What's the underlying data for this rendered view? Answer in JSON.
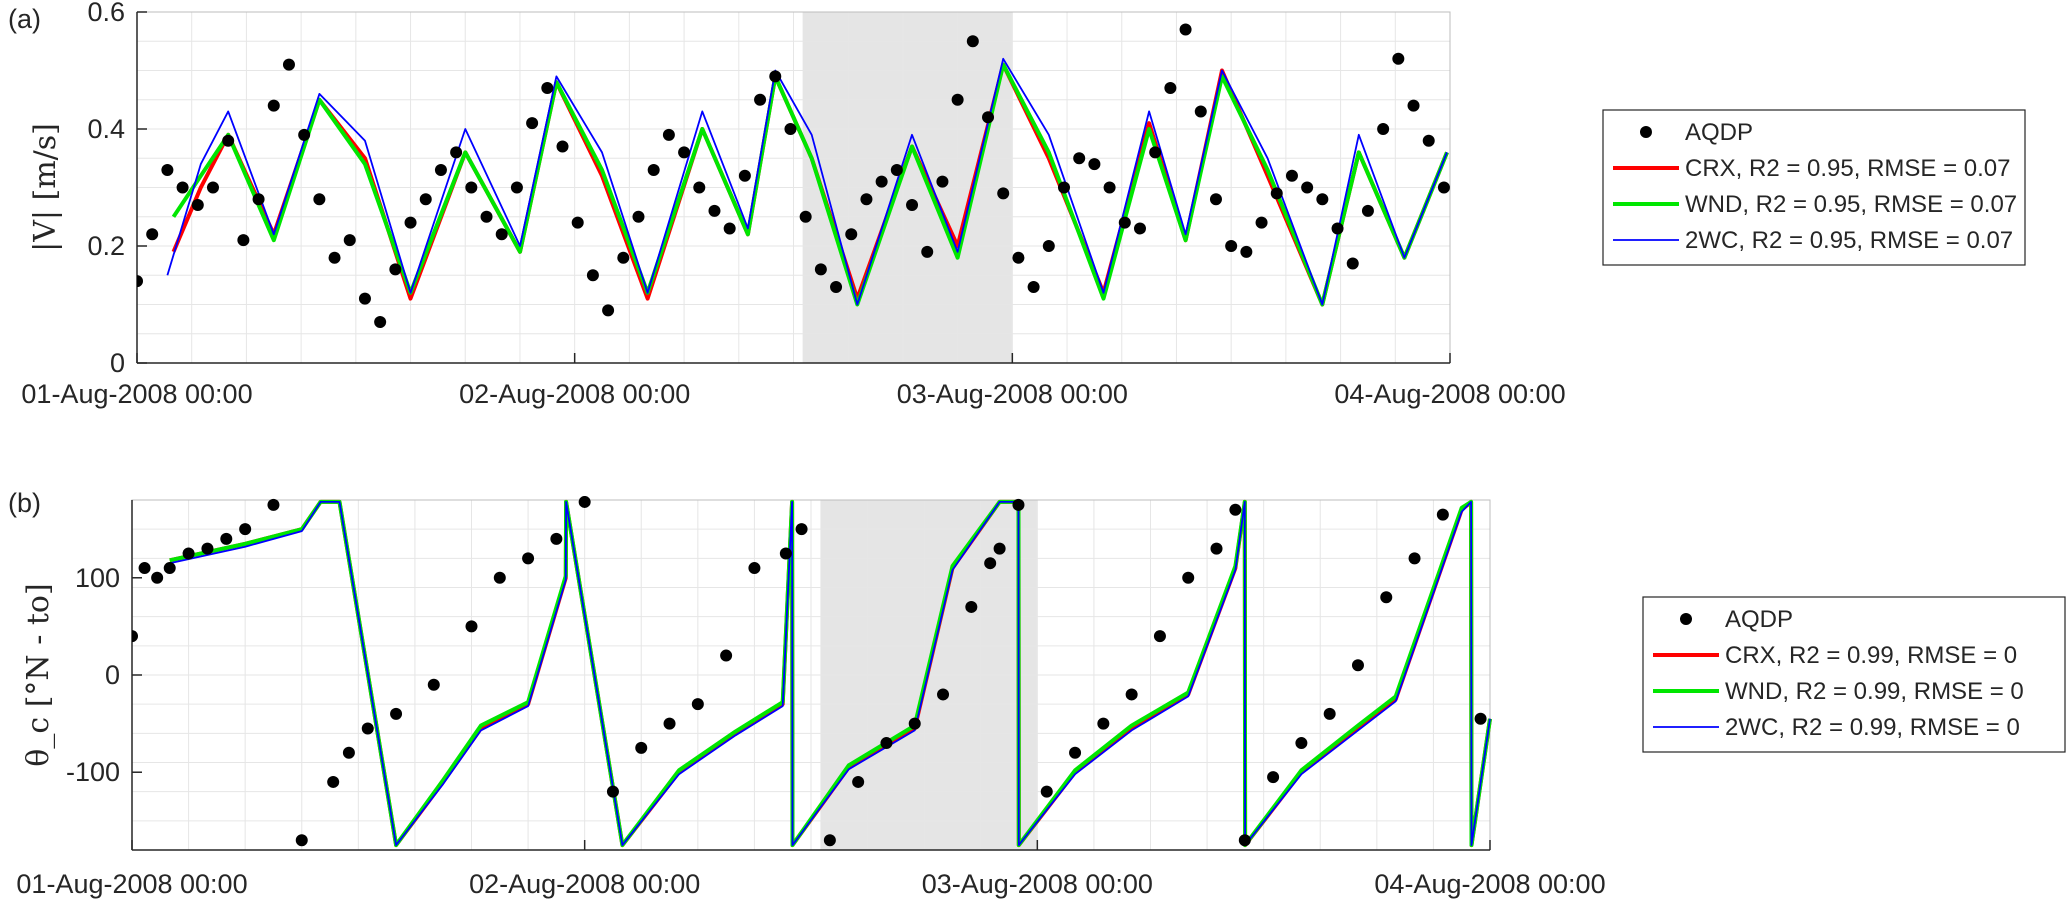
{
  "colors": {
    "AQDP": "#000000",
    "CRX": "#ff0000",
    "WND": "#00e600",
    "2WC": "#0000ff",
    "highlight": "#e5e5e5",
    "grid": "#e6e6e6",
    "axis": "#262626"
  },
  "chart_data": [
    {
      "type": "line",
      "panel_tag": "(a)",
      "ylabel": "|V| [m/s]",
      "xlabel": "",
      "ylim": [
        0,
        0.6
      ],
      "yticks": [
        0,
        0.2,
        0.4,
        0.6
      ],
      "ytick_labels": [
        "0",
        "0.2",
        "0.4",
        "0.6"
      ],
      "xlim": [
        "2008-08-01 00:00",
        "2008-08-04 00:00"
      ],
      "xtick_labels": [
        "01-Aug-2008 00:00",
        "02-Aug-2008 00:00",
        "03-Aug-2008 00:00",
        "04-Aug-2008 00:00"
      ],
      "grid": true,
      "highlight_window": [
        "2008-08-02 12:30",
        "2008-08-03 00:00"
      ],
      "legend_position": "outside-right",
      "series": [
        {
          "name": "AQDP",
          "kind": "scatter",
          "x": [
            "2008-08-01 00:00",
            "2008-08-01 00:50",
            "2008-08-01 01:40",
            "2008-08-01 02:30",
            "2008-08-01 03:20",
            "2008-08-01 04:10",
            "2008-08-01 05:00",
            "2008-08-01 05:50",
            "2008-08-01 06:40",
            "2008-08-01 07:30",
            "2008-08-01 08:20",
            "2008-08-01 09:10",
            "2008-08-01 10:00",
            "2008-08-01 10:50",
            "2008-08-01 11:40",
            "2008-08-01 12:30",
            "2008-08-01 13:20",
            "2008-08-01 14:10",
            "2008-08-01 15:00",
            "2008-08-01 15:50",
            "2008-08-01 16:40",
            "2008-08-01 17:30",
            "2008-08-01 18:20",
            "2008-08-01 19:10",
            "2008-08-01 20:00",
            "2008-08-01 20:50",
            "2008-08-01 21:40",
            "2008-08-01 22:30",
            "2008-08-01 23:20",
            "2008-08-02 00:10",
            "2008-08-02 01:00",
            "2008-08-02 01:50",
            "2008-08-02 02:40",
            "2008-08-02 03:30",
            "2008-08-02 04:20",
            "2008-08-02 05:10",
            "2008-08-02 06:00",
            "2008-08-02 06:50",
            "2008-08-02 07:40",
            "2008-08-02 08:30",
            "2008-08-02 09:20",
            "2008-08-02 10:10",
            "2008-08-02 11:00",
            "2008-08-02 11:50",
            "2008-08-02 12:40",
            "2008-08-02 13:30",
            "2008-08-02 14:20",
            "2008-08-02 15:10",
            "2008-08-02 16:00",
            "2008-08-02 16:50",
            "2008-08-02 17:40",
            "2008-08-02 18:30",
            "2008-08-02 19:20",
            "2008-08-02 20:10",
            "2008-08-02 21:00",
            "2008-08-02 21:50",
            "2008-08-02 22:40",
            "2008-08-02 23:30",
            "2008-08-03 00:20",
            "2008-08-03 01:10",
            "2008-08-03 02:00",
            "2008-08-03 02:50",
            "2008-08-03 03:40",
            "2008-08-03 04:30",
            "2008-08-03 05:20",
            "2008-08-03 06:10",
            "2008-08-03 07:00",
            "2008-08-03 07:50",
            "2008-08-03 08:40",
            "2008-08-03 09:30",
            "2008-08-03 10:20",
            "2008-08-03 11:10",
            "2008-08-03 12:00",
            "2008-08-03 12:50",
            "2008-08-03 13:40",
            "2008-08-03 14:30",
            "2008-08-03 15:20",
            "2008-08-03 16:10",
            "2008-08-03 17:00",
            "2008-08-03 17:50",
            "2008-08-03 18:40",
            "2008-08-03 19:30",
            "2008-08-03 20:20",
            "2008-08-03 21:10",
            "2008-08-03 22:00",
            "2008-08-03 22:50",
            "2008-08-03 23:40"
          ],
          "y": [
            0.14,
            0.22,
            0.33,
            0.3,
            0.27,
            0.3,
            0.38,
            0.21,
            0.28,
            0.44,
            0.51,
            0.39,
            0.28,
            0.18,
            0.21,
            0.11,
            0.07,
            0.16,
            0.24,
            0.28,
            0.33,
            0.36,
            0.3,
            0.25,
            0.22,
            0.3,
            0.41,
            0.47,
            0.37,
            0.24,
            0.15,
            0.09,
            0.18,
            0.25,
            0.33,
            0.39,
            0.36,
            0.3,
            0.26,
            0.23,
            0.32,
            0.45,
            0.49,
            0.4,
            0.25,
            0.16,
            0.13,
            0.22,
            0.28,
            0.31,
            0.33,
            0.27,
            0.19,
            0.31,
            0.45,
            0.55,
            0.42,
            0.29,
            0.18,
            0.13,
            0.2,
            0.3,
            0.35,
            0.34,
            0.3,
            0.24,
            0.23,
            0.36,
            0.47,
            0.57,
            0.43,
            0.28,
            0.2,
            0.19,
            0.24,
            0.29,
            0.32,
            0.3,
            0.28,
            0.23,
            0.17,
            0.26,
            0.4,
            0.52,
            0.44,
            0.38,
            0.3
          ]
        },
        {
          "name": "CRX",
          "kind": "line",
          "legend": "CRX, R2 = 0.95, RMSE = 0.07",
          "x": [
            "2008-08-01 02:00",
            "2008-08-01 03:30",
            "2008-08-01 05:00",
            "2008-08-01 07:30",
            "2008-08-01 10:00",
            "2008-08-01 12:30",
            "2008-08-01 15:00",
            "2008-08-01 18:00",
            "2008-08-01 21:00",
            "2008-08-01 23:00",
            "2008-08-02 01:30",
            "2008-08-02 04:00",
            "2008-08-02 07:00",
            "2008-08-02 09:30",
            "2008-08-02 11:00",
            "2008-08-02 13:00",
            "2008-08-02 15:30",
            "2008-08-02 18:30",
            "2008-08-02 21:00",
            "2008-08-02 23:30",
            "2008-08-03 02:00",
            "2008-08-03 05:00",
            "2008-08-03 07:30",
            "2008-08-03 09:30",
            "2008-08-03 11:30",
            "2008-08-03 14:00",
            "2008-08-03 17:00",
            "2008-08-03 19:00",
            "2008-08-03 21:30",
            "2008-08-03 23:50"
          ],
          "y": [
            0.19,
            0.3,
            0.39,
            0.22,
            0.45,
            0.35,
            0.11,
            0.36,
            0.19,
            0.48,
            0.32,
            0.11,
            0.4,
            0.22,
            0.49,
            0.35,
            0.11,
            0.37,
            0.2,
            0.51,
            0.35,
            0.12,
            0.41,
            0.21,
            0.5,
            0.32,
            0.1,
            0.36,
            0.18,
            0.36
          ]
        },
        {
          "name": "WND",
          "kind": "line",
          "legend": "WND, R2 = 0.95, RMSE = 0.07",
          "x": [
            "2008-08-01 02:00",
            "2008-08-01 03:30",
            "2008-08-01 05:00",
            "2008-08-01 07:30",
            "2008-08-01 10:00",
            "2008-08-01 12:30",
            "2008-08-01 15:00",
            "2008-08-01 18:00",
            "2008-08-01 21:00",
            "2008-08-01 23:00",
            "2008-08-02 01:30",
            "2008-08-02 04:00",
            "2008-08-02 07:00",
            "2008-08-02 09:30",
            "2008-08-02 11:00",
            "2008-08-02 13:00",
            "2008-08-02 15:30",
            "2008-08-02 18:30",
            "2008-08-02 21:00",
            "2008-08-02 23:30",
            "2008-08-03 02:00",
            "2008-08-03 05:00",
            "2008-08-03 07:30",
            "2008-08-03 09:30",
            "2008-08-03 11:30",
            "2008-08-03 14:00",
            "2008-08-03 17:00",
            "2008-08-03 19:00",
            "2008-08-03 21:30",
            "2008-08-03 23:50"
          ],
          "y": [
            0.25,
            0.32,
            0.39,
            0.21,
            0.45,
            0.34,
            0.12,
            0.36,
            0.19,
            0.48,
            0.33,
            0.12,
            0.4,
            0.22,
            0.49,
            0.35,
            0.1,
            0.37,
            0.18,
            0.51,
            0.36,
            0.11,
            0.4,
            0.21,
            0.49,
            0.33,
            0.1,
            0.36,
            0.18,
            0.36
          ]
        },
        {
          "name": "2WC",
          "kind": "line",
          "legend": "2WC, R2 = 0.95, RMSE = 0.07",
          "x": [
            "2008-08-01 01:40",
            "2008-08-01 03:30",
            "2008-08-01 05:00",
            "2008-08-01 07:30",
            "2008-08-01 10:00",
            "2008-08-01 12:30",
            "2008-08-01 15:00",
            "2008-08-01 18:00",
            "2008-08-01 21:00",
            "2008-08-01 23:00",
            "2008-08-02 01:30",
            "2008-08-02 04:00",
            "2008-08-02 07:00",
            "2008-08-02 09:30",
            "2008-08-02 11:00",
            "2008-08-02 13:00",
            "2008-08-02 15:30",
            "2008-08-02 18:30",
            "2008-08-02 21:00",
            "2008-08-02 23:30",
            "2008-08-03 02:00",
            "2008-08-03 05:00",
            "2008-08-03 07:30",
            "2008-08-03 09:30",
            "2008-08-03 11:30",
            "2008-08-03 14:00",
            "2008-08-03 17:00",
            "2008-08-03 19:00",
            "2008-08-03 21:30",
            "2008-08-03 23:50"
          ],
          "y": [
            0.15,
            0.34,
            0.43,
            0.22,
            0.46,
            0.38,
            0.12,
            0.4,
            0.2,
            0.49,
            0.36,
            0.12,
            0.43,
            0.23,
            0.5,
            0.39,
            0.1,
            0.39,
            0.19,
            0.52,
            0.39,
            0.12,
            0.43,
            0.22,
            0.5,
            0.35,
            0.1,
            0.39,
            0.18,
            0.36
          ]
        }
      ]
    },
    {
      "type": "line",
      "panel_tag": "(b)",
      "ylabel": "θ_c [°N - to]",
      "xlabel": "",
      "ylim": [
        -180,
        180
      ],
      "yticks": [
        -100,
        0,
        100
      ],
      "ytick_labels": [
        "-100",
        "0",
        "100"
      ],
      "xlim": [
        "2008-08-01 00:00",
        "2008-08-04 00:00"
      ],
      "xtick_labels": [
        "01-Aug-2008 00:00",
        "02-Aug-2008 00:00",
        "03-Aug-2008 00:00",
        "04-Aug-2008 00:00"
      ],
      "grid": true,
      "highlight_window": [
        "2008-08-02 12:30",
        "2008-08-03 00:00"
      ],
      "legend_position": "outside-right",
      "series": [
        {
          "name": "AQDP",
          "kind": "scatter",
          "x": [
            "2008-08-01 00:00",
            "2008-08-01 00:40",
            "2008-08-01 01:20",
            "2008-08-01 02:00",
            "2008-08-01 03:00",
            "2008-08-01 04:00",
            "2008-08-01 05:00",
            "2008-08-01 06:00",
            "2008-08-01 07:30",
            "2008-08-01 09:00",
            "2008-08-01 10:40",
            "2008-08-01 11:30",
            "2008-08-01 12:30",
            "2008-08-01 14:00",
            "2008-08-01 16:00",
            "2008-08-01 18:00",
            "2008-08-01 19:30",
            "2008-08-01 21:00",
            "2008-08-01 22:30",
            "2008-08-02 00:00",
            "2008-08-02 01:30",
            "2008-08-02 03:00",
            "2008-08-02 04:30",
            "2008-08-02 06:00",
            "2008-08-02 07:30",
            "2008-08-02 09:00",
            "2008-08-02 10:40",
            "2008-08-02 11:30",
            "2008-08-02 13:00",
            "2008-08-02 14:30",
            "2008-08-02 16:00",
            "2008-08-02 17:30",
            "2008-08-02 19:00",
            "2008-08-02 20:30",
            "2008-08-02 21:30",
            "2008-08-02 22:00",
            "2008-08-02 23:00",
            "2008-08-03 00:30",
            "2008-08-03 02:00",
            "2008-08-03 03:30",
            "2008-08-03 05:00",
            "2008-08-03 06:30",
            "2008-08-03 08:00",
            "2008-08-03 09:30",
            "2008-08-03 10:30",
            "2008-08-03 11:00",
            "2008-08-03 12:30",
            "2008-08-03 14:00",
            "2008-08-03 15:30",
            "2008-08-03 17:00",
            "2008-08-03 18:30",
            "2008-08-03 20:00",
            "2008-08-03 21:30",
            "2008-08-03 23:30"
          ],
          "y": [
            40,
            110,
            100,
            110,
            125,
            130,
            140,
            150,
            175,
            -170,
            -110,
            -80,
            -55,
            -40,
            -10,
            50,
            100,
            120,
            140,
            178,
            -120,
            -75,
            -50,
            -30,
            20,
            110,
            125,
            150,
            -170,
            -110,
            -70,
            -50,
            -20,
            70,
            115,
            130,
            175,
            -120,
            -80,
            -50,
            -20,
            40,
            100,
            130,
            170,
            -170,
            -105,
            -70,
            -40,
            10,
            80,
            120,
            165,
            -45
          ]
        },
        {
          "name": "CRX",
          "kind": "line",
          "legend": "CRX, R2 = 0.99, RMSE = 0",
          "x": [
            "2008-08-01 02:00",
            "2008-08-01 06:00",
            "2008-08-01 09:00",
            "2008-08-01 10:00",
            "2008-08-01 11:00",
            "2008-08-01 14:00",
            "2008-08-01 16:30",
            "2008-08-01 18:30",
            "2008-08-01 21:00",
            "2008-08-01 23:00",
            "2008-08-01 23:01",
            "2008-08-02 02:00",
            "2008-08-02 05:00",
            "2008-08-02 08:00",
            "2008-08-02 10:30",
            "2008-08-02 11:00",
            "2008-08-02 11:01",
            "2008-08-02 14:00",
            "2008-08-02 17:30",
            "2008-08-02 19:30",
            "2008-08-02 22:00",
            "2008-08-02 23:00",
            "2008-08-02 23:01",
            "2008-08-03 02:00",
            "2008-08-03 05:00",
            "2008-08-03 08:00",
            "2008-08-03 10:30",
            "2008-08-03 11:00",
            "2008-08-03 11:01",
            "2008-08-03 14:00",
            "2008-08-03 17:00",
            "2008-08-03 19:00",
            "2008-08-03 22:30",
            "2008-08-03 23:00",
            "2008-08-03 23:01",
            "2008-08-04 00:00"
          ],
          "y": [
            118,
            135,
            150,
            178,
            178,
            -175,
            -110,
            -55,
            -30,
            100,
            178,
            -175,
            -100,
            -60,
            -30,
            178,
            -175,
            -95,
            -55,
            110,
            178,
            178,
            -175,
            -100,
            -55,
            -20,
            110,
            178,
            -175,
            -100,
            -55,
            -25,
            170,
            178,
            -175,
            -45
          ]
        },
        {
          "name": "WND",
          "kind": "line",
          "legend": "WND, R2 = 0.99, RMSE = 0",
          "x": [
            "2008-08-01 02:00",
            "2008-08-01 06:00",
            "2008-08-01 09:00",
            "2008-08-01 10:00",
            "2008-08-01 11:00",
            "2008-08-01 14:00",
            "2008-08-01 16:30",
            "2008-08-01 18:30",
            "2008-08-01 21:00",
            "2008-08-01 23:00",
            "2008-08-01 23:01",
            "2008-08-02 02:00",
            "2008-08-02 05:00",
            "2008-08-02 08:00",
            "2008-08-02 10:30",
            "2008-08-02 11:00",
            "2008-08-02 11:01",
            "2008-08-02 14:00",
            "2008-08-02 17:30",
            "2008-08-02 19:30",
            "2008-08-02 22:00",
            "2008-08-02 23:00",
            "2008-08-02 23:01",
            "2008-08-03 02:00",
            "2008-08-03 05:00",
            "2008-08-03 08:00",
            "2008-08-03 10:30",
            "2008-08-03 11:00",
            "2008-08-03 11:01",
            "2008-08-03 14:00",
            "2008-08-03 17:00",
            "2008-08-03 19:00",
            "2008-08-03 22:30",
            "2008-08-03 23:00",
            "2008-08-03 23:01",
            "2008-08-04 00:00"
          ],
          "y": [
            118,
            135,
            150,
            178,
            178,
            -175,
            -108,
            -52,
            -28,
            102,
            178,
            -175,
            -98,
            -58,
            -28,
            178,
            -175,
            -93,
            -52,
            112,
            178,
            178,
            -175,
            -98,
            -52,
            -18,
            112,
            178,
            -175,
            -98,
            -52,
            -22,
            172,
            178,
            -175,
            -45
          ]
        },
        {
          "name": "2WC",
          "kind": "line",
          "legend": "2WC, R2 = 0.99, RMSE = 0",
          "x": [
            "2008-08-01 02:00",
            "2008-08-01 06:00",
            "2008-08-01 09:00",
            "2008-08-01 10:00",
            "2008-08-01 11:00",
            "2008-08-01 14:00",
            "2008-08-01 16:30",
            "2008-08-01 18:30",
            "2008-08-01 21:00",
            "2008-08-01 23:00",
            "2008-08-01 23:01",
            "2008-08-02 02:00",
            "2008-08-02 05:00",
            "2008-08-02 08:00",
            "2008-08-02 10:30",
            "2008-08-02 11:00",
            "2008-08-02 11:01",
            "2008-08-02 14:00",
            "2008-08-02 17:30",
            "2008-08-02 19:30",
            "2008-08-02 22:00",
            "2008-08-02 23:00",
            "2008-08-02 23:01",
            "2008-08-03 02:00",
            "2008-08-03 05:00",
            "2008-08-03 08:00",
            "2008-08-03 10:30",
            "2008-08-03 11:00",
            "2008-08-03 11:01",
            "2008-08-03 14:00",
            "2008-08-03 17:00",
            "2008-08-03 19:00",
            "2008-08-03 22:30",
            "2008-08-03 23:00",
            "2008-08-03 23:01",
            "2008-08-04 00:00"
          ],
          "y": [
            115,
            132,
            148,
            178,
            178,
            -175,
            -112,
            -57,
            -32,
            98,
            178,
            -175,
            -102,
            -62,
            -32,
            178,
            -175,
            -97,
            -57,
            108,
            178,
            178,
            -175,
            -102,
            -57,
            -22,
            108,
            178,
            -175,
            -102,
            -57,
            -27,
            168,
            178,
            -175,
            -45
          ]
        }
      ]
    }
  ]
}
